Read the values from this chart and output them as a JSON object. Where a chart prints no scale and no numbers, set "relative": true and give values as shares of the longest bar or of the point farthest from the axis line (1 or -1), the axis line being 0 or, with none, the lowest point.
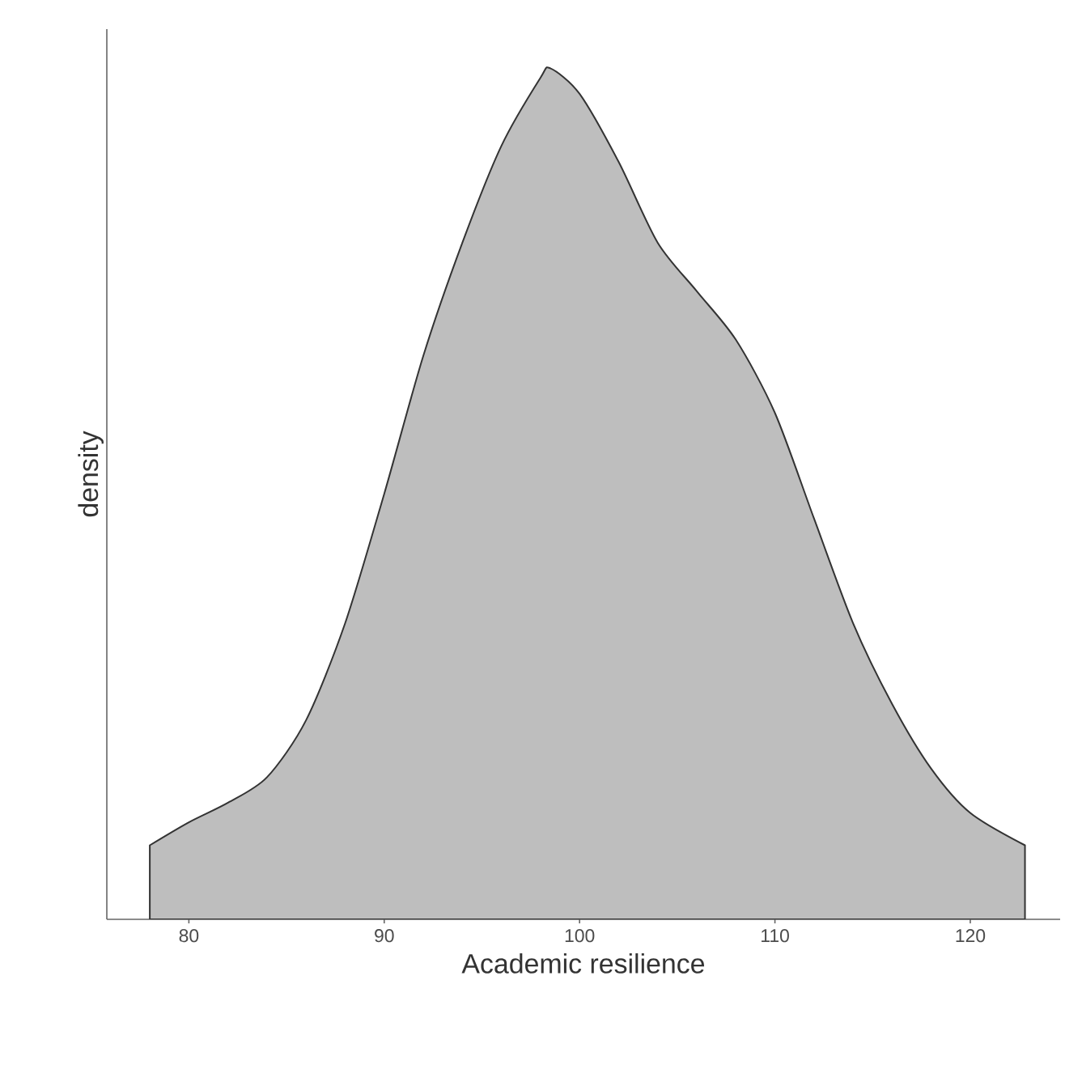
{
  "chart_data": {
    "type": "area",
    "xlabel": "Academic resilience",
    "ylabel": "density",
    "relative": true,
    "color": "#bebebe",
    "x": [
      78,
      80,
      82,
      84,
      86,
      88,
      90,
      92,
      94,
      96,
      98,
      98.5,
      100,
      102,
      104,
      106,
      108,
      110,
      112,
      114,
      116,
      118,
      120,
      122.8
    ],
    "values": [
      0.087,
      0.114,
      0.137,
      0.167,
      0.234,
      0.348,
      0.5,
      0.662,
      0.795,
      0.909,
      0.989,
      1.0,
      0.97,
      0.89,
      0.795,
      0.738,
      0.681,
      0.595,
      0.471,
      0.348,
      0.253,
      0.177,
      0.125,
      0.087
    ],
    "xlim": [
      75.8,
      124.6
    ],
    "xticks": [
      80,
      90,
      100,
      110,
      120
    ]
  }
}
